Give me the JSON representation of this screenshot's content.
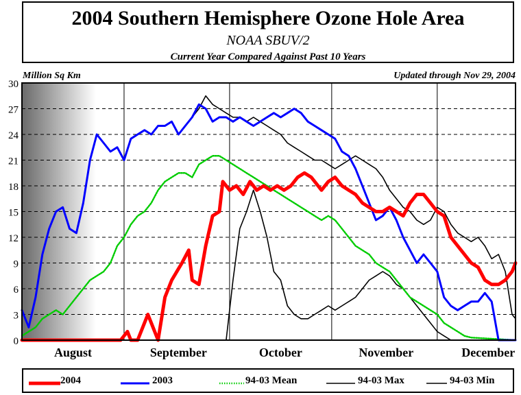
{
  "title": "2004 Southern Hemisphere Ozone Hole Area",
  "subtitle": "NOAA SBUV/2",
  "subtitle2": "Current Year Compared Against Past 10 Years",
  "unit_label": "Million Sq Km",
  "updated": "Updated through Nov 29, 2004",
  "colors": {
    "s2004": "#ff0000",
    "s2003": "#0000ff",
    "mean": "#00cc00",
    "max": "#000000",
    "min": "#000000"
  },
  "chart_data": {
    "type": "line",
    "ylabel": "Million Sq Km",
    "ylim": [
      0,
      30
    ],
    "yticks": [
      "0",
      "3",
      "6",
      "9",
      "12",
      "15",
      "18",
      "21",
      "24",
      "27",
      "30"
    ],
    "xlim": [
      0,
      145
    ],
    "months": [
      {
        "label": "August",
        "x": 15
      },
      {
        "label": "September",
        "x": 46
      },
      {
        "label": "October",
        "x": 76
      },
      {
        "label": "November",
        "x": 107
      },
      {
        "label": "December",
        "x": 137
      }
    ],
    "grid": true,
    "legend_position": "bottom",
    "series": [
      {
        "name": "2004",
        "key": "s2004",
        "style": "solid-thick",
        "points": [
          [
            0,
            0
          ],
          [
            29,
            0
          ],
          [
            31,
            1
          ],
          [
            32,
            0
          ],
          [
            34,
            0
          ],
          [
            37,
            3
          ],
          [
            38,
            2
          ],
          [
            40,
            0
          ],
          [
            42,
            5
          ],
          [
            44,
            7
          ],
          [
            47,
            9
          ],
          [
            49,
            10.5
          ],
          [
            50,
            7
          ],
          [
            52,
            6.5
          ],
          [
            54,
            11
          ],
          [
            56,
            14.5
          ],
          [
            58,
            15
          ],
          [
            59,
            18.5
          ],
          [
            61,
            17.5
          ],
          [
            63,
            18
          ],
          [
            65,
            17
          ],
          [
            67,
            18.5
          ],
          [
            69,
            17.5
          ],
          [
            71,
            18
          ],
          [
            73,
            17.5
          ],
          [
            75,
            18
          ],
          [
            77,
            17.5
          ],
          [
            79,
            18
          ],
          [
            81,
            19
          ],
          [
            83,
            19.5
          ],
          [
            85,
            19
          ],
          [
            87,
            18
          ],
          [
            88,
            17.5
          ],
          [
            90,
            18.5
          ],
          [
            92,
            19
          ],
          [
            94,
            18
          ],
          [
            96,
            17.5
          ],
          [
            98,
            17
          ],
          [
            100,
            16
          ],
          [
            102,
            15.5
          ],
          [
            104,
            15
          ],
          [
            106,
            15
          ],
          [
            108,
            15.5
          ],
          [
            110,
            15
          ],
          [
            112,
            14.5
          ],
          [
            114,
            16
          ],
          [
            116,
            17
          ],
          [
            118,
            17
          ],
          [
            120,
            16
          ],
          [
            122,
            15
          ],
          [
            124,
            14.5
          ],
          [
            126,
            12
          ],
          [
            128,
            11
          ],
          [
            130,
            10
          ],
          [
            132,
            9
          ],
          [
            134,
            8.5
          ],
          [
            136,
            7
          ],
          [
            138,
            6.5
          ],
          [
            140,
            6.5
          ],
          [
            142,
            7
          ],
          [
            144,
            8
          ],
          [
            145,
            9
          ]
        ]
      },
      {
        "name": "2003",
        "key": "s2003",
        "style": "solid",
        "points": [
          [
            0,
            3.5
          ],
          [
            2,
            1.5
          ],
          [
            4,
            5
          ],
          [
            6,
            10
          ],
          [
            8,
            13
          ],
          [
            10,
            15
          ],
          [
            12,
            15.5
          ],
          [
            14,
            13
          ],
          [
            16,
            12.5
          ],
          [
            18,
            16
          ],
          [
            20,
            21
          ],
          [
            22,
            24
          ],
          [
            24,
            23
          ],
          [
            26,
            22
          ],
          [
            28,
            22.5
          ],
          [
            30,
            21
          ],
          [
            32,
            23.5
          ],
          [
            34,
            24
          ],
          [
            36,
            24.5
          ],
          [
            38,
            24
          ],
          [
            40,
            25
          ],
          [
            42,
            25
          ],
          [
            44,
            25.5
          ],
          [
            46,
            24
          ],
          [
            48,
            25
          ],
          [
            50,
            26
          ],
          [
            52,
            27.5
          ],
          [
            54,
            27
          ],
          [
            56,
            25.5
          ],
          [
            58,
            26
          ],
          [
            60,
            26
          ],
          [
            62,
            25.5
          ],
          [
            64,
            26
          ],
          [
            66,
            25.5
          ],
          [
            68,
            25
          ],
          [
            70,
            25.5
          ],
          [
            72,
            26
          ],
          [
            74,
            26.5
          ],
          [
            76,
            26
          ],
          [
            78,
            26.5
          ],
          [
            80,
            27
          ],
          [
            82,
            26.5
          ],
          [
            84,
            25.5
          ],
          [
            86,
            25
          ],
          [
            88,
            24.5
          ],
          [
            90,
            24
          ],
          [
            92,
            23.5
          ],
          [
            94,
            22
          ],
          [
            96,
            21.5
          ],
          [
            98,
            20
          ],
          [
            100,
            18
          ],
          [
            102,
            16
          ],
          [
            104,
            14
          ],
          [
            106,
            14.5
          ],
          [
            108,
            15.5
          ],
          [
            110,
            14
          ],
          [
            112,
            12
          ],
          [
            114,
            10.5
          ],
          [
            116,
            9
          ],
          [
            118,
            10
          ],
          [
            120,
            9
          ],
          [
            122,
            8
          ],
          [
            124,
            5
          ],
          [
            126,
            4
          ],
          [
            128,
            3.5
          ],
          [
            130,
            4
          ],
          [
            132,
            4.5
          ],
          [
            134,
            4.5
          ],
          [
            136,
            5.5
          ],
          [
            138,
            4.5
          ],
          [
            140,
            0
          ],
          [
            145,
            0
          ]
        ]
      },
      {
        "name": "94-03 Mean",
        "key": "mean",
        "style": "dotted",
        "points": [
          [
            0,
            0.5
          ],
          [
            2,
            1
          ],
          [
            4,
            1.5
          ],
          [
            6,
            2.5
          ],
          [
            8,
            3
          ],
          [
            10,
            3.5
          ],
          [
            12,
            3
          ],
          [
            14,
            4
          ],
          [
            16,
            5
          ],
          [
            18,
            6
          ],
          [
            20,
            7
          ],
          [
            22,
            7.5
          ],
          [
            24,
            8
          ],
          [
            26,
            9
          ],
          [
            28,
            11
          ],
          [
            30,
            12
          ],
          [
            32,
            13.5
          ],
          [
            34,
            14.5
          ],
          [
            36,
            15
          ],
          [
            38,
            16
          ],
          [
            40,
            17.5
          ],
          [
            42,
            18.5
          ],
          [
            44,
            19
          ],
          [
            46,
            19.5
          ],
          [
            48,
            19.5
          ],
          [
            50,
            19
          ],
          [
            52,
            20.5
          ],
          [
            54,
            21
          ],
          [
            56,
            21.5
          ],
          [
            58,
            21.5
          ],
          [
            60,
            21
          ],
          [
            62,
            20.5
          ],
          [
            64,
            20
          ],
          [
            66,
            19.5
          ],
          [
            68,
            19
          ],
          [
            70,
            18.5
          ],
          [
            72,
            18
          ],
          [
            74,
            17.5
          ],
          [
            76,
            17
          ],
          [
            78,
            16.5
          ],
          [
            80,
            16
          ],
          [
            82,
            15.5
          ],
          [
            84,
            15
          ],
          [
            86,
            14.5
          ],
          [
            88,
            14
          ],
          [
            90,
            14.5
          ],
          [
            92,
            14
          ],
          [
            94,
            13
          ],
          [
            96,
            12
          ],
          [
            98,
            11
          ],
          [
            100,
            10.5
          ],
          [
            102,
            10
          ],
          [
            104,
            9
          ],
          [
            106,
            8.5
          ],
          [
            108,
            8
          ],
          [
            110,
            7
          ],
          [
            112,
            6
          ],
          [
            114,
            5
          ],
          [
            116,
            4.5
          ],
          [
            118,
            4
          ],
          [
            120,
            3.5
          ],
          [
            122,
            3
          ],
          [
            124,
            2
          ],
          [
            126,
            1.5
          ],
          [
            128,
            1
          ],
          [
            130,
            0.5
          ],
          [
            132,
            0.3
          ],
          [
            145,
            0
          ]
        ]
      },
      {
        "name": "94-03 Max",
        "key": "max",
        "style": "solid-thin",
        "points": [
          [
            46,
            24
          ],
          [
            48,
            25
          ],
          [
            50,
            26
          ],
          [
            52,
            27
          ],
          [
            54,
            28.5
          ],
          [
            56,
            27.5
          ],
          [
            58,
            27
          ],
          [
            60,
            26.5
          ],
          [
            62,
            26
          ],
          [
            64,
            26
          ],
          [
            66,
            25.5
          ],
          [
            68,
            26
          ],
          [
            70,
            25.5
          ],
          [
            72,
            25
          ],
          [
            74,
            24.5
          ],
          [
            76,
            24
          ],
          [
            78,
            23
          ],
          [
            80,
            22.5
          ],
          [
            82,
            22
          ],
          [
            84,
            21.5
          ],
          [
            86,
            21
          ],
          [
            88,
            21
          ],
          [
            90,
            20.5
          ],
          [
            92,
            20
          ],
          [
            94,
            20.5
          ],
          [
            96,
            21
          ],
          [
            98,
            21.5
          ],
          [
            100,
            21
          ],
          [
            102,
            20.5
          ],
          [
            104,
            20
          ],
          [
            106,
            19
          ],
          [
            108,
            17.5
          ],
          [
            110,
            16.5
          ],
          [
            112,
            15.5
          ],
          [
            114,
            15
          ],
          [
            116,
            14
          ],
          [
            118,
            13.5
          ],
          [
            120,
            14
          ],
          [
            122,
            15.5
          ],
          [
            124,
            15
          ],
          [
            126,
            13.5
          ],
          [
            128,
            12.5
          ],
          [
            130,
            12
          ],
          [
            132,
            11.5
          ],
          [
            134,
            12
          ],
          [
            136,
            11
          ],
          [
            138,
            9.5
          ],
          [
            140,
            10
          ],
          [
            142,
            8
          ],
          [
            144,
            3
          ],
          [
            145,
            2.5
          ]
        ]
      },
      {
        "name": "94-03 Min",
        "key": "min",
        "style": "solid-thin",
        "points": [
          [
            60,
            0
          ],
          [
            62,
            7
          ],
          [
            64,
            13
          ],
          [
            66,
            15
          ],
          [
            68,
            17.5
          ],
          [
            70,
            15
          ],
          [
            72,
            12
          ],
          [
            74,
            8
          ],
          [
            76,
            7
          ],
          [
            78,
            4
          ],
          [
            80,
            3
          ],
          [
            82,
            2.5
          ],
          [
            84,
            2.5
          ],
          [
            86,
            3
          ],
          [
            88,
            3.5
          ],
          [
            90,
            4
          ],
          [
            92,
            3.5
          ],
          [
            94,
            4
          ],
          [
            96,
            4.5
          ],
          [
            98,
            5
          ],
          [
            100,
            6
          ],
          [
            102,
            7
          ],
          [
            104,
            7.5
          ],
          [
            106,
            8
          ],
          [
            108,
            7.5
          ],
          [
            110,
            6.5
          ],
          [
            112,
            6
          ],
          [
            114,
            5
          ],
          [
            116,
            4
          ],
          [
            118,
            3
          ],
          [
            120,
            2
          ],
          [
            122,
            1
          ],
          [
            124,
            0.5
          ],
          [
            126,
            0
          ]
        ]
      }
    ]
  }
}
